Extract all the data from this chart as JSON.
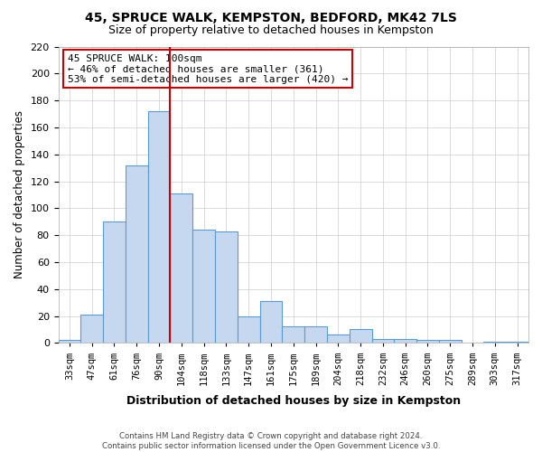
{
  "title": "45, SPRUCE WALK, KEMPSTON, BEDFORD, MK42 7LS",
  "subtitle": "Size of property relative to detached houses in Kempston",
  "xlabel": "Distribution of detached houses by size in Kempston",
  "ylabel": "Number of detached properties",
  "categories": [
    "33sqm",
    "47sqm",
    "61sqm",
    "76sqm",
    "90sqm",
    "104sqm",
    "118sqm",
    "133sqm",
    "147sqm",
    "161sqm",
    "175sqm",
    "189sqm",
    "204sqm",
    "218sqm",
    "232sqm",
    "246sqm",
    "260sqm",
    "275sqm",
    "289sqm",
    "303sqm",
    "317sqm"
  ],
  "values": [
    2,
    21,
    90,
    132,
    172,
    111,
    84,
    83,
    20,
    31,
    12,
    12,
    6,
    10,
    3,
    3,
    2,
    2,
    0,
    1,
    1
  ],
  "bar_color": "#c5d8f0",
  "bar_edge_color": "#5b9bd5",
  "vline_x_index": 4.5,
  "vline_color": "#cc0000",
  "ylim": [
    0,
    220
  ],
  "yticks": [
    0,
    20,
    40,
    60,
    80,
    100,
    120,
    140,
    160,
    180,
    200,
    220
  ],
  "annotation_title": "45 SPRUCE WALK: 100sqm",
  "annotation_line1": "← 46% of detached houses are smaller (361)",
  "annotation_line2": "53% of semi-detached houses are larger (420) →",
  "annotation_box_color": "#ffffff",
  "annotation_box_edge": "#cc0000",
  "footer_line1": "Contains HM Land Registry data © Crown copyright and database right 2024.",
  "footer_line2": "Contains public sector information licensed under the Open Government Licence v3.0.",
  "background_color": "#ffffff",
  "grid_color": "#cccccc"
}
